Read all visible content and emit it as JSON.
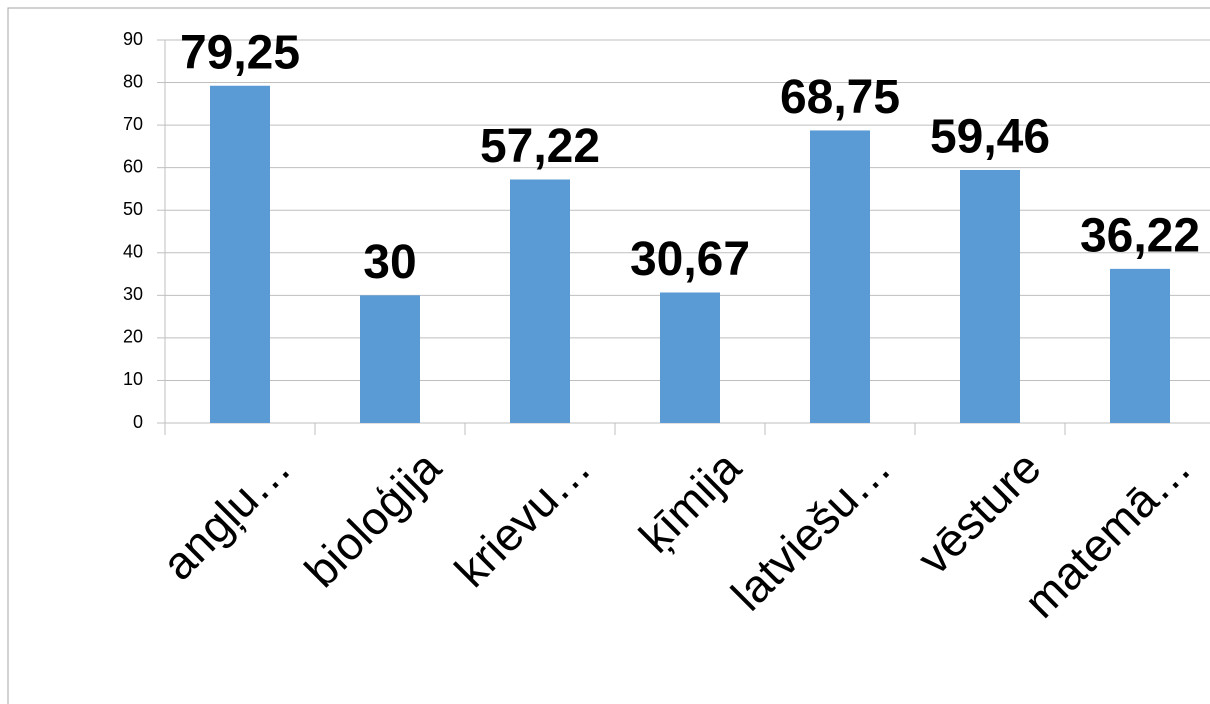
{
  "chart_data": {
    "type": "bar",
    "categories": [
      "angļu…",
      "bioloģija",
      "krievu…",
      "ķīmija",
      "latviešu…",
      "vēsture",
      "matemā…"
    ],
    "values": [
      79.25,
      30,
      57.22,
      30.67,
      68.75,
      59.46,
      36.22
    ],
    "value_labels": [
      "79,25",
      "30",
      "57,22",
      "30,67",
      "68,75",
      "59,46",
      "36,22"
    ],
    "color": "#5b9bd5",
    "ylim": [
      0,
      90
    ],
    "yticks": [
      0,
      10,
      20,
      30,
      40,
      50,
      60,
      70,
      80,
      90
    ],
    "grid": true
  }
}
